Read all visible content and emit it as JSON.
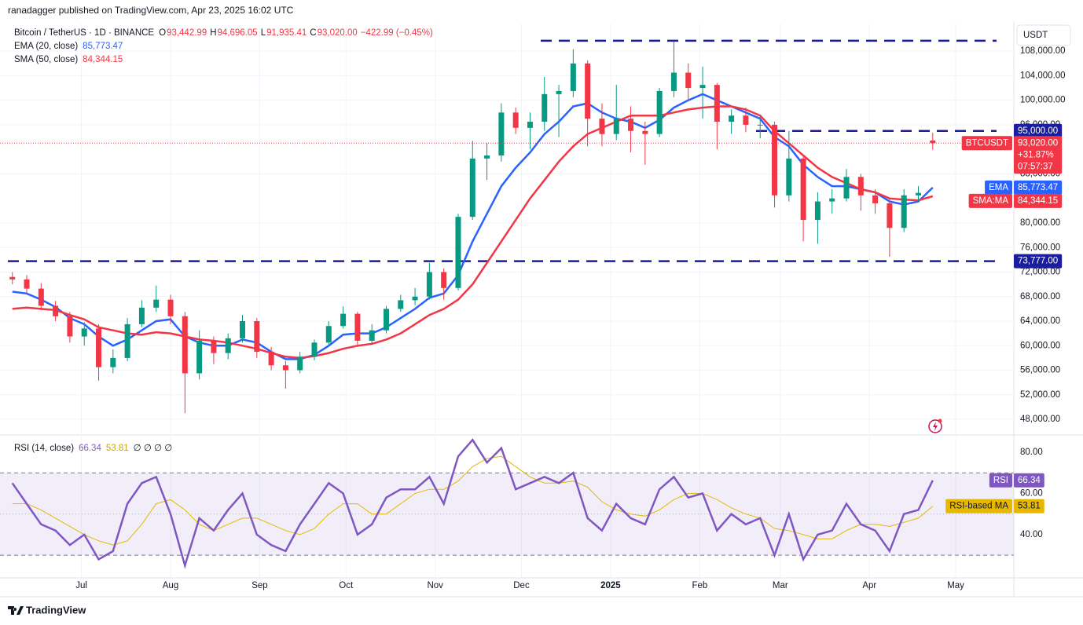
{
  "header": "ranadagger published on TradingView.com, Apr 23, 2025 16:02 UTC",
  "footer": "TradingView",
  "chart_data": [
    {
      "type": "candlestick",
      "title": "Bitcoin / TetherUS · 1D · BINANCE",
      "ohlc_legend": [
        {
          "key": "O",
          "text": "93,442.99"
        },
        {
          "key": "H",
          "text": "94,696.05"
        },
        {
          "key": "L",
          "text": "91,935.41"
        },
        {
          "key": "C",
          "text": "93,020.00"
        }
      ],
      "change": "−422.99 (−0.45%)",
      "indicators": [
        {
          "name": "EMA (20, close)",
          "text": "85,773.47"
        },
        {
          "name": "SMA (50, close)",
          "text": "84,344.15"
        }
      ],
      "currency": "USDT",
      "up_color": "#089981",
      "down_color": "#f23645",
      "x": [
        1,
        6,
        11,
        16,
        21,
        26,
        31,
        36,
        41,
        46,
        51,
        56,
        61,
        66,
        71,
        76,
        81,
        86,
        91,
        96,
        101,
        106,
        111,
        116,
        121,
        126,
        131,
        136,
        141,
        146,
        151,
        156,
        161,
        166,
        171,
        176,
        181,
        186,
        191,
        196,
        201,
        206,
        211,
        216,
        221,
        226,
        231,
        236,
        241,
        246,
        251,
        256,
        261,
        266,
        271,
        276,
        281,
        286,
        291,
        296,
        301,
        306,
        311,
        316,
        321
      ],
      "open": [
        71200,
        70800,
        69300,
        66500,
        64800,
        61500,
        62800,
        56500,
        58000,
        63500,
        66200,
        67500,
        64800,
        55500,
        60800,
        58800,
        61200,
        64000,
        59000,
        56800,
        56000,
        58200,
        60500,
        63200,
        65200,
        60800,
        62500,
        66000,
        67400,
        68000,
        72000,
        69400,
        81000,
        90500,
        91000,
        98000,
        95500,
        96500,
        101000,
        101500,
        106000,
        97000,
        94500,
        97000,
        95000,
        94500,
        101500,
        104500,
        102000,
        102500,
        96500,
        97500,
        96000,
        96000,
        84500,
        90500,
        80500,
        83500,
        84000,
        87500,
        84500,
        83200,
        79200,
        84500,
        93442.99
      ],
      "high": [
        72000,
        71500,
        70200,
        67300,
        65500,
        63800,
        63500,
        59400,
        64500,
        67400,
        69800,
        68300,
        65500,
        62500,
        61500,
        62000,
        65000,
        64500,
        59800,
        57500,
        59000,
        61000,
        64000,
        66400,
        65500,
        63500,
        66500,
        68300,
        69400,
        73500,
        72600,
        81500,
        93400,
        93000,
        99500,
        98800,
        98000,
        103800,
        102500,
        108300,
        106500,
        99500,
        102500,
        99000,
        96500,
        102000,
        109600,
        106000,
        105500,
        102800,
        98500,
        98800,
        97500,
        96500,
        95000,
        91000,
        85000,
        85500,
        88800,
        88000,
        85500,
        84000,
        85500,
        86000,
        94696.05
      ],
      "low": [
        70000,
        68500,
        65800,
        64000,
        60500,
        60000,
        54300,
        55500,
        57500,
        63000,
        65500,
        63500,
        49000,
        54500,
        57000,
        57800,
        60500,
        58000,
        56000,
        53000,
        55500,
        57600,
        60000,
        62800,
        59800,
        60200,
        62000,
        65500,
        66600,
        67500,
        67500,
        69000,
        80500,
        87000,
        90000,
        94500,
        92000,
        95000,
        94000,
        100500,
        92500,
        92500,
        93500,
        91500,
        89500,
        94000,
        100500,
        100000,
        97000,
        92000,
        94500,
        94800,
        93800,
        82500,
        83500,
        77000,
        76600,
        81500,
        83500,
        82000,
        81500,
        74500,
        78500,
        83500,
        91935.41
      ],
      "close": [
        70800,
        69300,
        66500,
        64800,
        61500,
        62800,
        56500,
        58000,
        63500,
        66200,
        67500,
        64800,
        55500,
        60800,
        58800,
        61200,
        64000,
        59000,
        56800,
        56000,
        58200,
        60500,
        63200,
        65200,
        60800,
        62500,
        66000,
        67400,
        68000,
        72000,
        69400,
        81000,
        90500,
        91000,
        98000,
        95500,
        96500,
        101000,
        101500,
        106000,
        97000,
        94500,
        97000,
        95000,
        94500,
        101500,
        104500,
        102000,
        102500,
        96500,
        97500,
        96000,
        96000,
        84500,
        90500,
        80500,
        83500,
        84000,
        87500,
        84500,
        83200,
        79200,
        84500,
        84900,
        93020
      ],
      "last_badge": {
        "name": "BTCUSDT",
        "value_label": "93,020.00",
        "change": "+31.87%",
        "countdown": "07:57:37"
      },
      "series": [
        {
          "name": "EMA",
          "color": "#2962ff",
          "value_label": "85,773.47",
          "values": [
            68800,
            68500,
            67500,
            66300,
            64500,
            63500,
            61500,
            60000,
            61000,
            62500,
            64000,
            64300,
            61500,
            60500,
            60000,
            60000,
            61000,
            60500,
            59000,
            57800,
            57800,
            58500,
            60000,
            61800,
            62000,
            62000,
            63000,
            64500,
            66000,
            67800,
            68500,
            71500,
            77000,
            81500,
            86000,
            89000,
            91500,
            94500,
            96500,
            99000,
            99500,
            98000,
            97000,
            96500,
            95500,
            96800,
            98800,
            100000,
            101000,
            100000,
            99000,
            98000,
            97000,
            94000,
            92500,
            89500,
            87500,
            86000,
            86000,
            85500,
            85000,
            83500,
            83000,
            83500,
            85773.47
          ]
        },
        {
          "name": "SMA:MA",
          "color": "#f23645",
          "value_label": "84,344.15",
          "values": [
            66000,
            66200,
            66000,
            65800,
            65000,
            64300,
            63000,
            62500,
            62000,
            61800,
            62200,
            62000,
            61500,
            61000,
            60800,
            60500,
            60000,
            59500,
            58800,
            58200,
            58000,
            58300,
            58800,
            59500,
            60000,
            60300,
            61000,
            62000,
            63500,
            65000,
            66000,
            67500,
            70000,
            73500,
            77000,
            80500,
            84000,
            87000,
            90000,
            92500,
            94500,
            95500,
            96500,
            97500,
            97500,
            97500,
            98000,
            98500,
            98800,
            99000,
            99000,
            98500,
            97500,
            95000,
            93000,
            91000,
            89000,
            87500,
            86500,
            85500,
            85000,
            84000,
            83800,
            83700,
            84344.15
          ]
        }
      ],
      "levels": [
        {
          "value": 109700
        },
        {
          "value": 95000,
          "label": "95,000.00"
        },
        {
          "value": 73777,
          "label": "73,777.00"
        }
      ],
      "level_color": "#1a1d9e",
      "ylim": [
        45700,
        112500
      ],
      "yticks": [
        {
          "value": 48000,
          "label": "48,000.00"
        },
        {
          "value": 52000,
          "label": "52,000.00"
        },
        {
          "value": 56000,
          "label": "56,000.00"
        },
        {
          "value": 60000,
          "label": "60,000.00"
        },
        {
          "value": 64000,
          "label": "64,000.00"
        },
        {
          "value": 68000,
          "label": "68,000.00"
        },
        {
          "value": 72000,
          "label": "72,000.00"
        },
        {
          "value": 76000,
          "label": "76,000.00"
        },
        {
          "value": 80000,
          "label": "80,000.00"
        },
        {
          "value": 88000,
          "label": "88,000.00"
        },
        {
          "value": 96000,
          "label": "96,000.00"
        },
        {
          "value": 100000,
          "label": "100,000.00"
        },
        {
          "value": 104000,
          "label": "104,000.00"
        },
        {
          "value": 108000,
          "label": "108,000.00"
        }
      ],
      "xlim": [
        -3.3,
        349.2
      ],
      "xticks": [
        {
          "value": 25,
          "label": "Jul"
        },
        {
          "value": 56,
          "label": "Aug"
        },
        {
          "value": 87,
          "label": "Sep"
        },
        {
          "value": 117,
          "label": "Oct"
        },
        {
          "value": 148,
          "label": "Nov"
        },
        {
          "value": 178,
          "label": "Dec"
        },
        {
          "value": 209,
          "label": "2025"
        },
        {
          "value": 240,
          "label": "Feb"
        },
        {
          "value": 268,
          "label": "Mar"
        },
        {
          "value": 299,
          "label": "Apr"
        },
        {
          "value": 329,
          "label": "May"
        }
      ],
      "grid": true
    },
    {
      "type": "line",
      "title": "RSI (14, close)",
      "legend_values": [
        "66.34",
        "53.81"
      ],
      "legend_extra": "∅ ∅ ∅ ∅",
      "series": [
        {
          "name": "RSI",
          "color": "#7e57c2",
          "value_label": "66.34",
          "values": [
            65,
            55,
            45,
            42,
            35,
            40,
            28,
            32,
            55,
            65,
            68,
            50,
            25,
            48,
            42,
            52,
            60,
            40,
            35,
            32,
            45,
            55,
            65,
            60,
            40,
            45,
            58,
            62,
            62,
            68,
            55,
            78,
            86,
            75,
            82,
            62,
            65,
            68,
            65,
            70,
            48,
            42,
            55,
            48,
            45,
            62,
            68,
            58,
            60,
            42,
            50,
            45,
            48,
            30,
            50,
            28,
            40,
            42,
            55,
            45,
            42,
            32,
            50,
            52,
            66.34
          ]
        },
        {
          "name": "RSI-based MA",
          "color": "#e6b800",
          "value_label": "53.81",
          "values": [
            55,
            55,
            52,
            48,
            44,
            40,
            37,
            35,
            37,
            45,
            55,
            57,
            52,
            45,
            42,
            45,
            48,
            48,
            45,
            42,
            40,
            43,
            50,
            55,
            55,
            50,
            50,
            55,
            60,
            62,
            62,
            66,
            73,
            77,
            78,
            73,
            68,
            65,
            65,
            66,
            63,
            56,
            52,
            50,
            49,
            52,
            57,
            60,
            60,
            57,
            53,
            50,
            48,
            43,
            42,
            40,
            38,
            38,
            42,
            45,
            45,
            44,
            46,
            48,
            53.81
          ]
        }
      ],
      "bands": [
        70,
        30
      ],
      "midline": 50,
      "ylim": [
        19.4,
        87.6
      ],
      "yticks": [
        {
          "value": 40,
          "label": "40.00"
        },
        {
          "value": 60,
          "label": "60.00"
        },
        {
          "value": 80,
          "label": "80.00"
        }
      ],
      "xlim": [
        -3.3,
        349.2
      ]
    }
  ]
}
